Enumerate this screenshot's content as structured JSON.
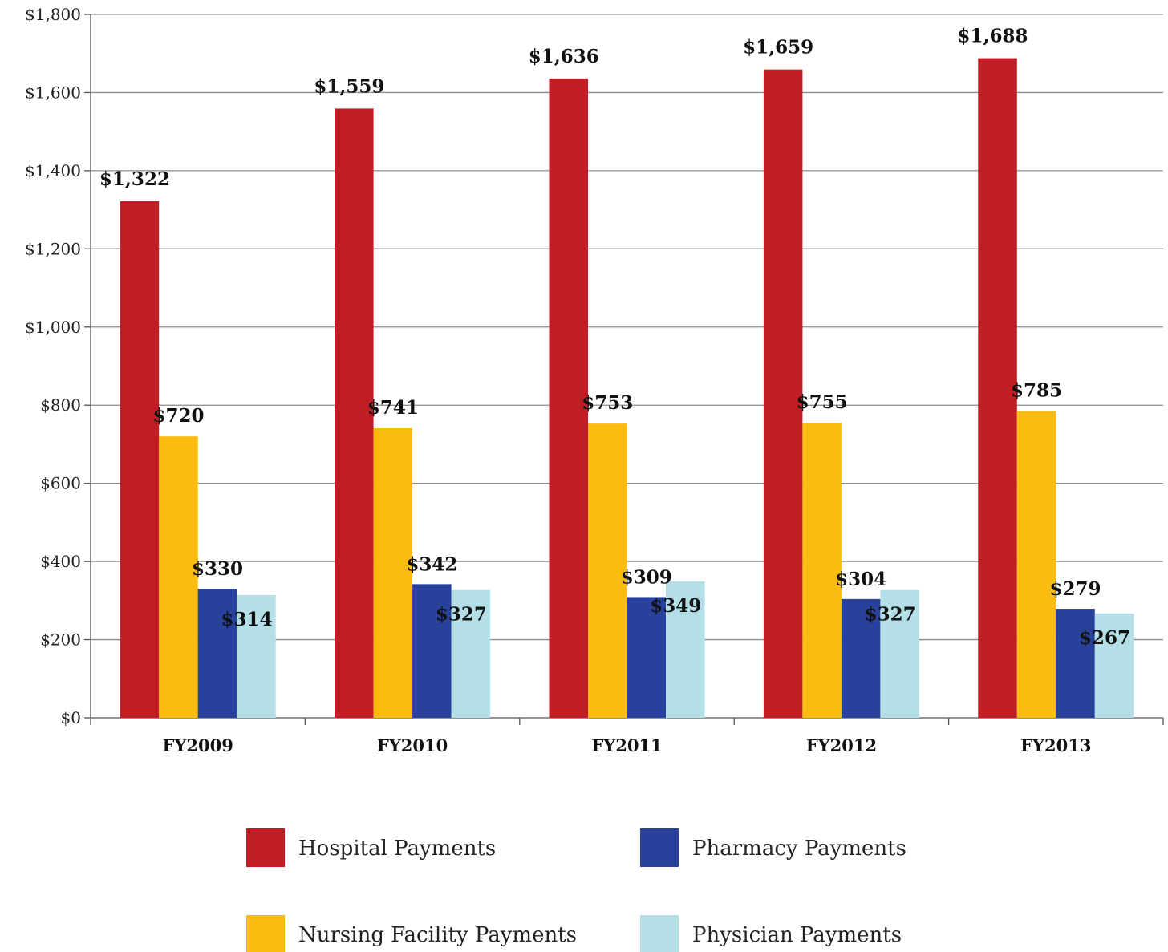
{
  "chart_data": {
    "type": "bar",
    "categories": [
      "FY2009",
      "FY2010",
      "FY2011",
      "FY2012",
      "FY2013"
    ],
    "series": [
      {
        "name": "Hospital Payments",
        "color": "#c01e24",
        "values": [
          1322,
          1559,
          1636,
          1659,
          1688
        ],
        "labels": [
          "$1,322",
          "$1,559",
          "$1,636",
          "$1,659",
          "$1,688"
        ]
      },
      {
        "name": "Nursing Facility Payments",
        "color": "#fbbc10",
        "values": [
          720,
          741,
          753,
          755,
          785
        ],
        "labels": [
          "$720",
          "$741",
          "$753",
          "$755",
          "$785"
        ]
      },
      {
        "name": "Pharmacy Payments",
        "color": "#28419a",
        "values": [
          330,
          342,
          309,
          304,
          279
        ],
        "labels": [
          "$330",
          "$342",
          "$309",
          "$304",
          "$279"
        ]
      },
      {
        "name": "Physician Payments",
        "color": "#b5dfe7",
        "values": [
          314,
          327,
          349,
          327,
          267
        ],
        "labels": [
          "$314",
          "$327",
          "$349",
          "$327",
          "$267"
        ]
      }
    ],
    "ylim": [
      0,
      1800
    ],
    "yticks": [
      0,
      200,
      400,
      600,
      800,
      1000,
      1200,
      1400,
      1600,
      1800
    ],
    "ytick_labels": [
      "$0",
      "$200",
      "$400",
      "$600",
      "$800",
      "$1,000",
      "$1,200",
      "$1,400",
      "$1,600",
      "$1,800"
    ],
    "grid": true,
    "legend_position": "bottom",
    "title": "",
    "xlabel": "",
    "ylabel": ""
  }
}
